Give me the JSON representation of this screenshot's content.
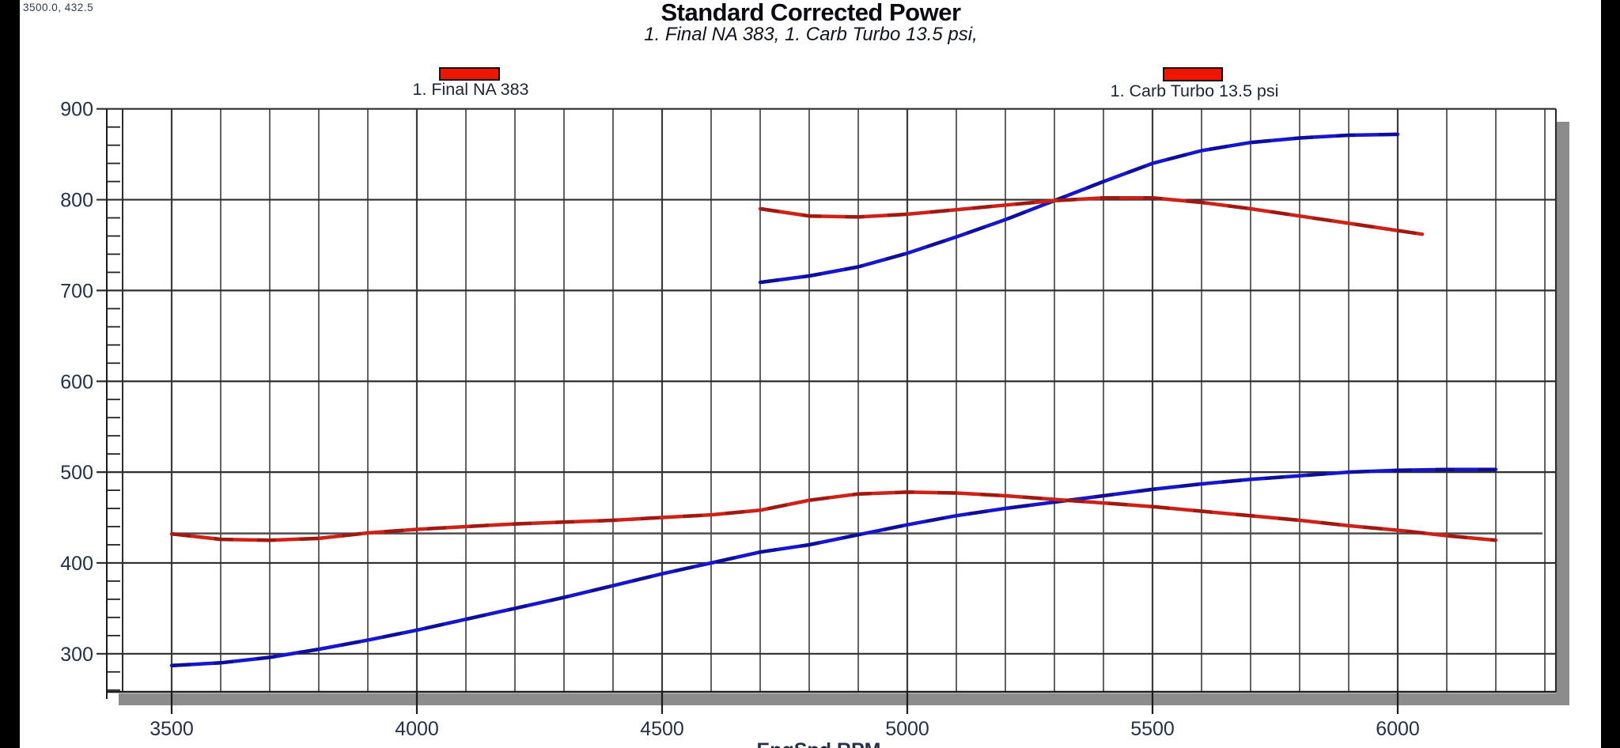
{
  "window": {
    "cursor_readout": "3500.0, 432.5"
  },
  "chart": {
    "title": "Standard Corrected Power",
    "subtitle": "1. Final NA 383, 1. Carb Turbo 13.5 psi,",
    "xlabel": "EngSpd RPM",
    "legend": [
      {
        "label": "1. Final NA 383",
        "swatch_color": "#ee1502"
      },
      {
        "label": "1. Carb Turbo 13.5 psi",
        "swatch_color": "#ee1502"
      }
    ]
  },
  "chart_data": {
    "type": "line",
    "title": "Standard Corrected Power",
    "subtitle": "1. Final NA 383, 1. Carb Turbo 13.5 psi,",
    "xlabel": "EngSpd RPM",
    "ylabel": "",
    "grid": "on",
    "xlim": [
      3400,
      6320
    ],
    "ylim": [
      258,
      900
    ],
    "x_tick_labels": [
      3500,
      4000,
      4500,
      5000,
      5500,
      6000
    ],
    "x_grid_step": 100,
    "y_tick_labels": [
      300,
      400,
      500,
      600,
      700,
      800,
      900
    ],
    "y_minor_tick_step": 20,
    "cursor": {
      "rpm": 3500.0,
      "value": 432.5
    },
    "colors": {
      "power_curve": "#1616cc",
      "torque_curve": "#cc2218",
      "cursor_line": "#4d4d4d"
    },
    "series": [
      {
        "name": "1. Final NA 383 power",
        "color": "#1616cc",
        "x": [
          3500,
          3600,
          3700,
          3800,
          3900,
          4000,
          4100,
          4200,
          4300,
          4400,
          4500,
          4600,
          4700,
          4800,
          4900,
          5000,
          5100,
          5200,
          5300,
          5400,
          5500,
          5600,
          5700,
          5800,
          5900,
          6000,
          6100,
          6200
        ],
        "values": [
          287,
          290,
          296,
          305,
          315,
          326,
          338,
          350,
          362,
          375,
          388,
          400,
          412,
          420,
          431,
          442,
          452,
          460,
          467,
          474,
          481,
          487,
          492,
          496,
          500,
          502,
          503,
          503
        ]
      },
      {
        "name": "1. Final NA 383 torque",
        "color": "#cc2218",
        "x": [
          3500,
          3600,
          3700,
          3800,
          3900,
          4000,
          4100,
          4200,
          4300,
          4400,
          4500,
          4600,
          4700,
          4800,
          4900,
          5000,
          5100,
          5200,
          5300,
          5400,
          5500,
          5600,
          5700,
          5800,
          5900,
          6000,
          6100,
          6200
        ],
        "values": [
          432,
          426,
          425,
          427,
          433,
          437,
          440,
          443,
          445,
          447,
          450,
          453,
          458,
          469,
          476,
          478,
          477,
          474,
          470,
          466,
          462,
          457,
          452,
          447,
          441,
          436,
          430,
          425
        ]
      },
      {
        "name": "1. Carb Turbo 13.5 psi power",
        "color": "#1616cc",
        "x": [
          4700,
          4800,
          4900,
          5000,
          5100,
          5200,
          5300,
          5400,
          5500,
          5600,
          5700,
          5800,
          5900,
          6000
        ],
        "values": [
          709,
          716,
          726,
          741,
          759,
          778,
          799,
          820,
          840,
          854,
          863,
          868,
          871,
          872
        ]
      },
      {
        "name": "1. Carb Turbo 13.5 psi torque",
        "color": "#cc2218",
        "x": [
          4700,
          4800,
          4900,
          5000,
          5100,
          5200,
          5300,
          5400,
          5500,
          5600,
          5700,
          5800,
          5900,
          6000,
          6050
        ],
        "values": [
          790,
          782,
          781,
          784,
          789,
          794,
          799,
          802,
          802,
          797,
          790,
          782,
          774,
          766,
          762
        ]
      }
    ]
  }
}
